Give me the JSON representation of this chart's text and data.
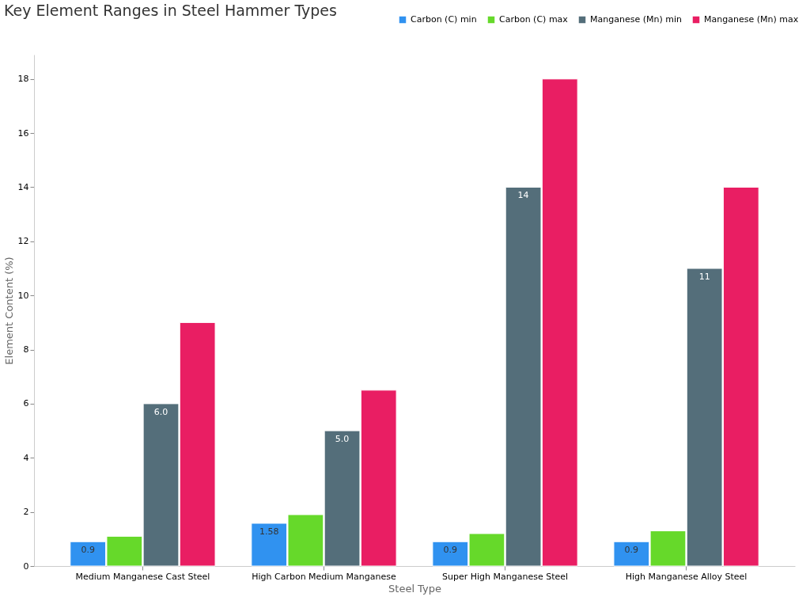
{
  "chart_data": {
    "type": "bar",
    "title": "Key Element Ranges in Steel Hammer Types",
    "xlabel": "Steel Type",
    "ylabel": "Element Content (%)",
    "categories": [
      "Medium Manganese Cast Steel",
      "High Carbon Medium Manganese",
      "Super High Manganese Steel",
      "High Manganese Alloy Steel"
    ],
    "series": [
      {
        "name": "Carbon (C) min",
        "color": "#3092f0",
        "values": [
          0.9,
          1.58,
          0.9,
          0.9
        ],
        "value_labels": [
          "0.9",
          "1.58",
          "0.9",
          "0.9"
        ]
      },
      {
        "name": "Carbon (C) max",
        "color": "#66d92a",
        "values": [
          1.1,
          1.9,
          1.2,
          1.3
        ]
      },
      {
        "name": "Manganese (Mn) min",
        "color": "#546e7a",
        "values": [
          6.0,
          5.0,
          14,
          11
        ],
        "value_labels": [
          "6.0",
          "5.0",
          "14",
          "11"
        ]
      },
      {
        "name": "Manganese (Mn) max",
        "color": "#e91e63",
        "values": [
          9,
          6.5,
          18,
          14
        ]
      }
    ],
    "ylim": [
      0,
      18.9
    ],
    "yticks": [
      0,
      2,
      4,
      6,
      8,
      10,
      12,
      14,
      16,
      18
    ],
    "grid": false,
    "legend": "top right"
  }
}
